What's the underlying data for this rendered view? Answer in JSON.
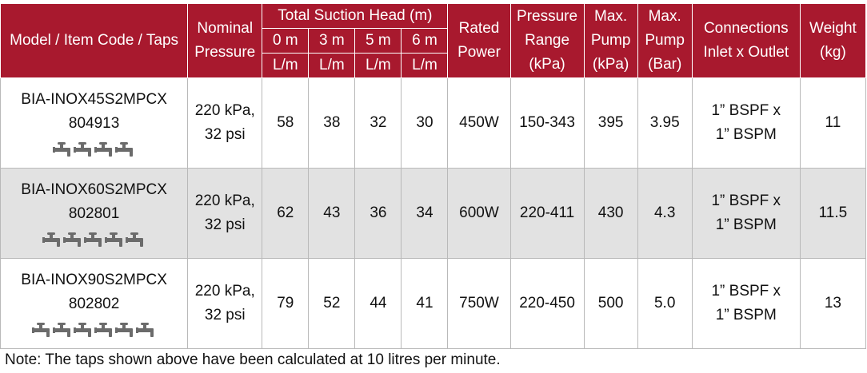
{
  "headers": {
    "model": "Model / Item Code / Taps",
    "nominal_pressure": [
      "Nominal",
      "Pressure"
    ],
    "suction_group": "Total Suction Head (m)",
    "suction_cols": [
      "0 m",
      "3 m",
      "5 m",
      "6 m"
    ],
    "suction_unit": "L/m",
    "rated_power": [
      "Rated",
      "Power"
    ],
    "pressure_range": [
      "Pressure",
      "Range",
      "(kPa)"
    ],
    "max_pump_kpa": [
      "Max.",
      "Pump",
      "(kPa)"
    ],
    "max_pump_bar": [
      "Max.",
      "Pump",
      "(Bar)"
    ],
    "connections": [
      "Connections",
      "Inlet x  Outlet"
    ],
    "weight": [
      "Weight",
      "(kg)"
    ]
  },
  "rows": [
    {
      "model": "BIA-INOX45S2MPCX",
      "code": "804913",
      "tap_count": 4,
      "nominal": [
        "220 kPa,",
        "32 psi"
      ],
      "flows": [
        "58",
        "38",
        "32",
        "30"
      ],
      "power": "450W",
      "range": "150-343",
      "max_kpa": "395",
      "max_bar": "3.95",
      "connection": [
        "1” BSPF x",
        "1” BSPM"
      ],
      "weight": "11"
    },
    {
      "model": "BIA-INOX60S2MPCX",
      "code": "802801",
      "tap_count": 5,
      "nominal": [
        "220 kPa,",
        "32 psi"
      ],
      "flows": [
        "62",
        "43",
        "36",
        "34"
      ],
      "power": "600W",
      "range": "220-411",
      "max_kpa": "430",
      "max_bar": "4.3",
      "connection": [
        "1” BSPF x",
        "1” BSPM"
      ],
      "weight": "11.5"
    },
    {
      "model": "BIA-INOX90S2MPCX",
      "code": "802802",
      "tap_count": 6,
      "nominal": [
        "220 kPa,",
        "32 psi"
      ],
      "flows": [
        "79",
        "52",
        "44",
        "41"
      ],
      "power": "750W",
      "range": "220-450",
      "max_kpa": "500",
      "max_bar": "5.0",
      "connection": [
        "1” BSPF x",
        "1” BSPM"
      ],
      "weight": "13"
    }
  ],
  "note": "Note: The taps shown above have been calculated at 10 litres per minute.",
  "colors": {
    "header_bg": "#a8192e",
    "row_alt": "#e2e2e2",
    "tap_icon": "#6b6b6b"
  },
  "icons": {
    "tap": "tap-icon"
  }
}
